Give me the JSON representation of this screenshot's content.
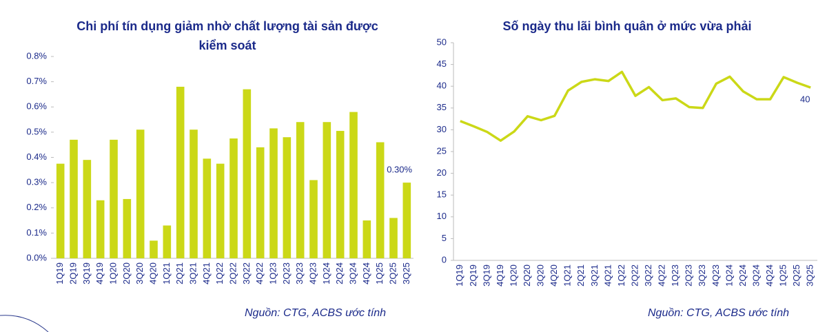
{
  "chart_data": [
    {
      "type": "bar",
      "title": "Chi phí tín dụng giảm nhờ chất lượng tài sản được kiểm soát",
      "source": "Nguồn: CTG, ACBS ước tính",
      "categories": [
        "1Q19",
        "2Q19",
        "3Q19",
        "4Q19",
        "1Q20",
        "2Q20",
        "3Q20",
        "4Q20",
        "1Q21",
        "2Q21",
        "3Q21",
        "4Q21",
        "1Q22",
        "2Q22",
        "3Q22",
        "4Q22",
        "1Q23",
        "2Q23",
        "3Q23",
        "4Q23",
        "1Q24",
        "2Q24",
        "3Q24",
        "4Q24",
        "1Q25",
        "2Q25",
        "3Q25"
      ],
      "values": [
        0.375,
        0.47,
        0.39,
        0.23,
        0.47,
        0.235,
        0.51,
        0.07,
        0.13,
        0.68,
        0.51,
        0.395,
        0.375,
        0.475,
        0.67,
        0.44,
        0.515,
        0.48,
        0.54,
        0.31,
        0.54,
        0.505,
        0.58,
        0.15,
        0.46,
        0.16,
        0.3
      ],
      "value_labels": [
        null,
        null,
        null,
        null,
        null,
        null,
        null,
        null,
        null,
        null,
        null,
        null,
        null,
        null,
        null,
        null,
        null,
        null,
        null,
        null,
        null,
        null,
        null,
        null,
        null,
        null,
        "0.30%"
      ],
      "color": "#cbd817",
      "ylim": [
        0,
        0.8
      ],
      "yticks": [
        {
          "value": 0,
          "label": "0.0%"
        },
        {
          "value": 0.1,
          "label": "0.1%"
        },
        {
          "value": 0.2,
          "label": "0.2%"
        },
        {
          "value": 0.3,
          "label": "0.3%"
        },
        {
          "value": 0.4,
          "label": "0.4%"
        },
        {
          "value": 0.5,
          "label": "0.5%"
        },
        {
          "value": 0.6,
          "label": "0.6%"
        },
        {
          "value": 0.7,
          "label": "0.7%"
        },
        {
          "value": 0.8,
          "label": "0.8%"
        }
      ]
    },
    {
      "type": "line",
      "title": "Số ngày thu lãi bình quân ở mức vừa phải",
      "source": "Nguồn: CTG, ACBS ước tính",
      "categories": [
        "1Q19",
        "2Q19",
        "3Q19",
        "4Q19",
        "1Q20",
        "2Q20",
        "3Q20",
        "4Q20",
        "1Q21",
        "2Q21",
        "3Q21",
        "4Q21",
        "1Q22",
        "2Q22",
        "3Q22",
        "4Q22",
        "1Q23",
        "2Q23",
        "3Q23",
        "4Q23",
        "1Q24",
        "2Q24",
        "3Q24",
        "4Q24",
        "1Q25",
        "2Q25",
        "3Q25"
      ],
      "values": [
        32,
        30.8,
        29.5,
        27.5,
        29.6,
        33.1,
        32.2,
        33.2,
        39,
        41,
        41.6,
        41.2,
        43.3,
        37.8,
        39.8,
        36.8,
        37.2,
        35.2,
        35,
        40.6,
        42.2,
        38.8,
        37,
        37,
        42.1,
        40.8,
        39.7
      ],
      "value_labels": [
        null,
        null,
        null,
        null,
        null,
        null,
        null,
        null,
        null,
        null,
        null,
        null,
        null,
        null,
        null,
        null,
        null,
        null,
        null,
        null,
        null,
        null,
        null,
        null,
        null,
        null,
        "40"
      ],
      "color": "#cbd817",
      "ylim": [
        0,
        50
      ],
      "yticks": [
        0,
        5,
        10,
        15,
        20,
        25,
        30,
        35,
        40,
        45,
        50
      ]
    }
  ]
}
